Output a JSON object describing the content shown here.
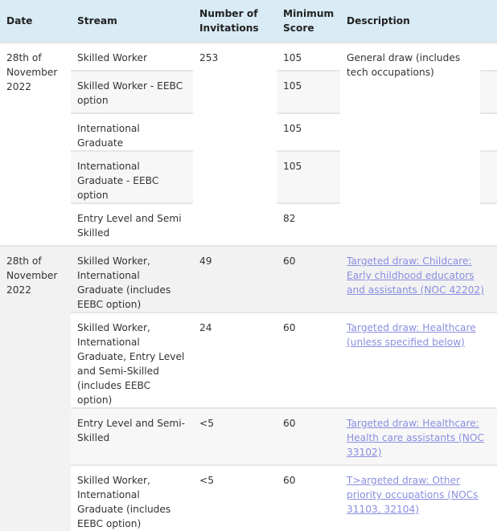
{
  "headers": {
    "date": "Date",
    "stream": "Stream",
    "invitations": "Number of Invitations",
    "score": "Minimum Score",
    "description": "Description"
  },
  "groups": [
    {
      "date": "28th of November 2022",
      "invitations": "253",
      "description": "General draw (includes tech occupations)",
      "rows": [
        {
          "stream": "Skilled Worker",
          "score": "105"
        },
        {
          "stream": "Skilled Worker - EEBC option",
          "score": "105"
        },
        {
          "stream": "International Graduate",
          "score": "105"
        },
        {
          "stream": "International Graduate - EEBC option",
          "score": "105"
        },
        {
          "stream": "Entry Level and Semi Skilled",
          "score": "82"
        }
      ]
    },
    {
      "date": "28th of November 2022",
      "rows": [
        {
          "stream": "Skilled Worker, International Graduate (includes EEBC option)",
          "invitations": "49",
          "score": "60",
          "description": "Targeted draw: Childcare: Early childhood educators and assistants (NOC 42202)"
        },
        {
          "stream": "Skilled Worker, International Graduate, Entry Level and Semi-Skilled (includes EEBC option)",
          "invitations": "24",
          "score": "60",
          "description": "Targeted draw: Healthcare (unless specified below)"
        },
        {
          "stream": "Entry Level and Semi-Skilled",
          "invitations": "<5",
          "score": "60",
          "description": "Targeted draw: Healthcare: Health care assistants (NOC 33102)"
        },
        {
          "stream": "Skilled Worker, International Graduate (includes EEBC option)",
          "invitations": "<5",
          "score": "60",
          "description": "T>argeted draw: Other priority occupations (NOCs 31103, 32104)"
        }
      ]
    }
  ],
  "colors": {
    "header_bg": "#d9ebf5",
    "link": "#8a8ee0",
    "stripe": "#f7f7f7"
  }
}
